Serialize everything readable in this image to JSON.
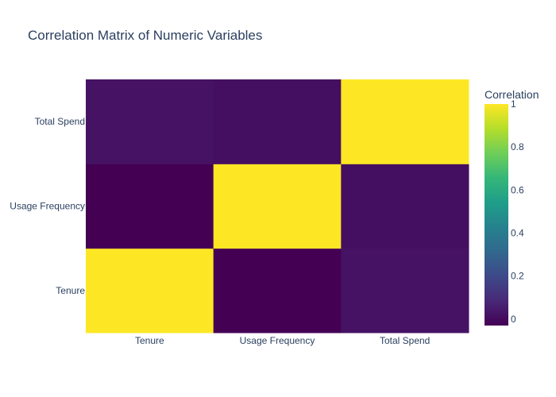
{
  "chart_data": {
    "type": "heatmap",
    "title": "Correlation Matrix of Numeric Variables",
    "x_categories": [
      "Tenure",
      "Usage Frequency",
      "Total Spend"
    ],
    "y_categories": [
      "Tenure",
      "Usage Frequency",
      "Total Spend"
    ],
    "z": [
      [
        1,
        -0.03,
        0.02
      ],
      [
        -0.03,
        1,
        0.01
      ],
      [
        0.02,
        0.01,
        1
      ]
    ],
    "zmin": -0.03,
    "zmax": 1,
    "colorscale": "Viridis",
    "colorbar": {
      "title": "Correlation",
      "ticks": [
        0,
        0.2,
        0.4,
        0.6,
        0.8,
        1
      ],
      "tick_labels": [
        "0",
        "0.2",
        "0.4",
        "0.6",
        "0.8",
        "1"
      ]
    }
  }
}
